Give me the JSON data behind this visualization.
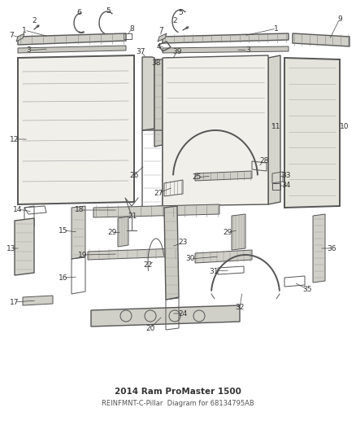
{
  "title": "2014 Ram ProMaster 1500",
  "subtitle": "REINFMNT-C-Pillar",
  "part_number": "68134795AB",
  "bg_color": "#ffffff",
  "lc": "#555555",
  "lc_dark": "#333333",
  "label_fontsize": 6.5,
  "title_fontsize": 7.5,
  "fig_width": 4.38,
  "fig_height": 5.33,
  "dpi": 100
}
